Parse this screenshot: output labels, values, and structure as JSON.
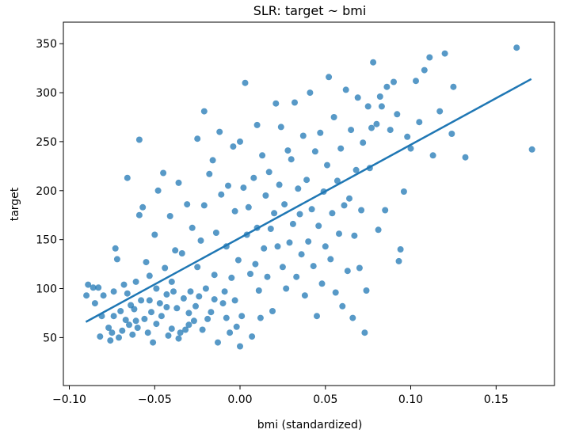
{
  "chart_data": {
    "type": "scatter",
    "title": "SLR: target ~ bmi",
    "xlabel": "bmi (standardized)",
    "ylabel": "target",
    "xlim": [
      -0.1035,
      0.1842
    ],
    "ylim": [
      1.0,
      372.0
    ],
    "xticks": [
      -0.1,
      -0.05,
      0.0,
      0.05,
      0.1,
      0.15
    ],
    "xtick_labels": [
      "−0.10",
      "−0.05",
      "0.00",
      "0.05",
      "0.10",
      "0.15"
    ],
    "yticks": [
      50,
      100,
      150,
      200,
      250,
      300,
      350
    ],
    "ytick_labels": [
      "50",
      "100",
      "150",
      "200",
      "250",
      "300",
      "350"
    ],
    "grid": false,
    "marker_color": "#1f77b4",
    "line_color": "#1f77b4",
    "fit_line": {
      "x": [
        -0.0903,
        0.1706
      ],
      "y": [
        66,
        314
      ]
    },
    "points": [
      [
        -0.09,
        93
      ],
      [
        -0.089,
        104
      ],
      [
        -0.086,
        101
      ],
      [
        -0.085,
        85
      ],
      [
        -0.083,
        101
      ],
      [
        -0.082,
        51
      ],
      [
        -0.081,
        72
      ],
      [
        -0.08,
        93
      ],
      [
        -0.077,
        60
      ],
      [
        -0.076,
        47
      ],
      [
        -0.075,
        55
      ],
      [
        -0.074,
        97
      ],
      [
        -0.074,
        72
      ],
      [
        -0.073,
        141
      ],
      [
        -0.072,
        130
      ],
      [
        -0.071,
        50
      ],
      [
        -0.07,
        77
      ],
      [
        -0.069,
        57
      ],
      [
        -0.068,
        104
      ],
      [
        -0.067,
        68
      ],
      [
        -0.066,
        213
      ],
      [
        -0.066,
        95
      ],
      [
        -0.065,
        63
      ],
      [
        -0.064,
        83
      ],
      [
        -0.063,
        53
      ],
      [
        -0.062,
        79
      ],
      [
        -0.061,
        107
      ],
      [
        -0.061,
        67
      ],
      [
        -0.06,
        60
      ],
      [
        -0.059,
        175
      ],
      [
        -0.059,
        252
      ],
      [
        -0.058,
        88
      ],
      [
        -0.057,
        183
      ],
      [
        -0.056,
        69
      ],
      [
        -0.055,
        127
      ],
      [
        -0.054,
        55
      ],
      [
        -0.053,
        113
      ],
      [
        -0.053,
        88
      ],
      [
        -0.052,
        76
      ],
      [
        -0.051,
        45
      ],
      [
        -0.05,
        155
      ],
      [
        -0.049,
        100
      ],
      [
        -0.049,
        64
      ],
      [
        -0.048,
        200
      ],
      [
        -0.047,
        85
      ],
      [
        -0.046,
        72
      ],
      [
        -0.045,
        218
      ],
      [
        -0.044,
        121
      ],
      [
        -0.043,
        81
      ],
      [
        -0.043,
        94
      ],
      [
        -0.042,
        52
      ],
      [
        -0.041,
        174
      ],
      [
        -0.04,
        107
      ],
      [
        -0.04,
        59
      ],
      [
        -0.039,
        97
      ],
      [
        -0.038,
        139
      ],
      [
        -0.037,
        80
      ],
      [
        -0.036,
        208
      ],
      [
        -0.036,
        49
      ],
      [
        -0.035,
        55
      ],
      [
        -0.034,
        136
      ],
      [
        -0.033,
        90
      ],
      [
        -0.032,
        58
      ],
      [
        -0.031,
        186
      ],
      [
        -0.03,
        63
      ],
      [
        -0.03,
        75
      ],
      [
        -0.029,
        97
      ],
      [
        -0.028,
        162
      ],
      [
        -0.027,
        67
      ],
      [
        -0.026,
        82
      ],
      [
        -0.025,
        253
      ],
      [
        -0.025,
        122
      ],
      [
        -0.024,
        92
      ],
      [
        -0.023,
        149
      ],
      [
        -0.022,
        58
      ],
      [
        -0.021,
        185
      ],
      [
        -0.021,
        281
      ],
      [
        -0.02,
        100
      ],
      [
        -0.019,
        69
      ],
      [
        -0.018,
        217
      ],
      [
        -0.017,
        76
      ],
      [
        -0.016,
        231
      ],
      [
        -0.015,
        89
      ],
      [
        -0.015,
        114
      ],
      [
        -0.014,
        157
      ],
      [
        -0.013,
        45
      ],
      [
        -0.012,
        260
      ],
      [
        -0.011,
        196
      ],
      [
        -0.01,
        85
      ],
      [
        -0.009,
        97
      ],
      [
        -0.008,
        143
      ],
      [
        -0.008,
        70
      ],
      [
        -0.007,
        205
      ],
      [
        -0.006,
        55
      ],
      [
        -0.005,
        111
      ],
      [
        -0.004,
        245
      ],
      [
        -0.003,
        179
      ],
      [
        -0.003,
        88
      ],
      [
        -0.002,
        61
      ],
      [
        -0.001,
        129
      ],
      [
        0.0,
        250
      ],
      [
        0.0,
        41
      ],
      [
        0.001,
        72
      ],
      [
        0.002,
        203
      ],
      [
        0.003,
        310
      ],
      [
        0.004,
        155
      ],
      [
        0.005,
        183
      ],
      [
        0.006,
        115
      ],
      [
        0.007,
        51
      ],
      [
        0.008,
        213
      ],
      [
        0.009,
        125
      ],
      [
        0.01,
        267
      ],
      [
        0.01,
        162
      ],
      [
        0.011,
        98
      ],
      [
        0.012,
        70
      ],
      [
        0.013,
        236
      ],
      [
        0.014,
        141
      ],
      [
        0.015,
        195
      ],
      [
        0.016,
        112
      ],
      [
        0.017,
        219
      ],
      [
        0.018,
        161
      ],
      [
        0.019,
        77
      ],
      [
        0.02,
        177
      ],
      [
        0.021,
        289
      ],
      [
        0.022,
        143
      ],
      [
        0.023,
        206
      ],
      [
        0.024,
        265
      ],
      [
        0.025,
        122
      ],
      [
        0.026,
        186
      ],
      [
        0.027,
        100
      ],
      [
        0.028,
        241
      ],
      [
        0.029,
        147
      ],
      [
        0.03,
        232
      ],
      [
        0.031,
        166
      ],
      [
        0.032,
        290
      ],
      [
        0.033,
        112
      ],
      [
        0.034,
        202
      ],
      [
        0.035,
        176
      ],
      [
        0.036,
        135
      ],
      [
        0.037,
        256
      ],
      [
        0.038,
        93
      ],
      [
        0.039,
        211
      ],
      [
        0.04,
        148
      ],
      [
        0.041,
        300
      ],
      [
        0.042,
        181
      ],
      [
        0.043,
        123
      ],
      [
        0.044,
        240
      ],
      [
        0.045,
        72
      ],
      [
        0.046,
        164
      ],
      [
        0.047,
        259
      ],
      [
        0.048,
        105
      ],
      [
        0.049,
        199
      ],
      [
        0.05,
        143
      ],
      [
        0.051,
        226
      ],
      [
        0.052,
        316
      ],
      [
        0.053,
        130
      ],
      [
        0.054,
        177
      ],
      [
        0.055,
        275
      ],
      [
        0.056,
        96
      ],
      [
        0.057,
        210
      ],
      [
        0.058,
        156
      ],
      [
        0.059,
        243
      ],
      [
        0.06,
        82
      ],
      [
        0.061,
        185
      ],
      [
        0.062,
        303
      ],
      [
        0.063,
        118
      ],
      [
        0.064,
        192
      ],
      [
        0.065,
        262
      ],
      [
        0.066,
        70
      ],
      [
        0.067,
        154
      ],
      [
        0.068,
        221
      ],
      [
        0.069,
        295
      ],
      [
        0.07,
        121
      ],
      [
        0.071,
        180
      ],
      [
        0.072,
        249
      ],
      [
        0.073,
        55
      ],
      [
        0.074,
        98
      ],
      [
        0.075,
        286
      ],
      [
        0.076,
        223
      ],
      [
        0.077,
        264
      ],
      [
        0.078,
        331
      ],
      [
        0.08,
        268
      ],
      [
        0.081,
        160
      ],
      [
        0.082,
        296
      ],
      [
        0.083,
        286
      ],
      [
        0.085,
        180
      ],
      [
        0.086,
        306
      ],
      [
        0.088,
        262
      ],
      [
        0.09,
        311
      ],
      [
        0.092,
        278
      ],
      [
        0.093,
        128
      ],
      [
        0.094,
        140
      ],
      [
        0.096,
        199
      ],
      [
        0.098,
        255
      ],
      [
        0.1,
        243
      ],
      [
        0.103,
        312
      ],
      [
        0.105,
        270
      ],
      [
        0.108,
        323
      ],
      [
        0.111,
        336
      ],
      [
        0.113,
        236
      ],
      [
        0.117,
        281
      ],
      [
        0.12,
        340
      ],
      [
        0.124,
        258
      ],
      [
        0.125,
        306
      ],
      [
        0.132,
        234
      ],
      [
        0.162,
        346
      ],
      [
        0.171,
        242
      ]
    ]
  }
}
